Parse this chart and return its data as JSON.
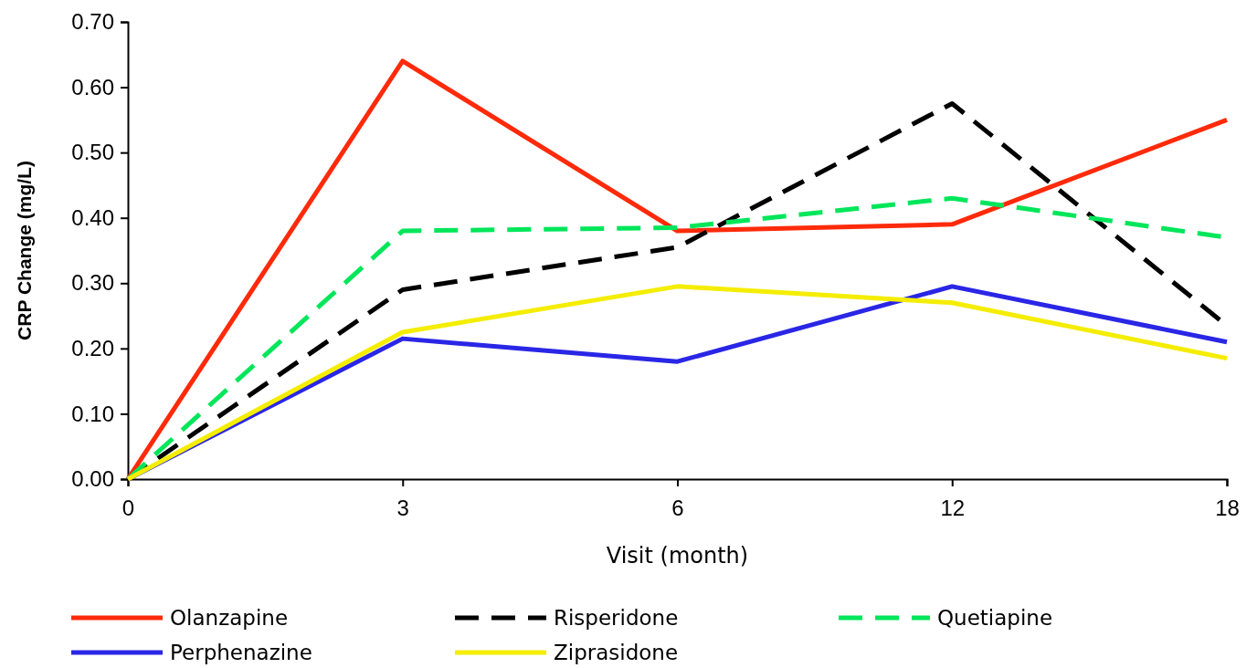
{
  "chart_data": {
    "type": "line",
    "xlabel": "Visit (month)",
    "ylabel": "CRP Change (mg/L)",
    "categories": [
      "0",
      "3",
      "6",
      "12",
      "18"
    ],
    "ylim": [
      0,
      0.7
    ],
    "yticks": [
      {
        "value": 0,
        "label": "0.00"
      },
      {
        "value": 0.1,
        "label": "0.10"
      },
      {
        "value": 0.2,
        "label": "0.20"
      },
      {
        "value": 0.3,
        "label": "0.30"
      },
      {
        "value": 0.4,
        "label": "0.40"
      },
      {
        "value": 0.5,
        "label": "0.50"
      },
      {
        "value": 0.6,
        "label": "0.60"
      },
      {
        "value": 0.7,
        "label": "0.70"
      }
    ],
    "legend": "bottom",
    "marker": "none",
    "series": [
      {
        "name": "Olanzapine",
        "color": "#ff2a0a",
        "line_style": "solid",
        "values": [
          0,
          0.64,
          0.38,
          0.39,
          0.55
        ]
      },
      {
        "name": "Risperidone",
        "color": "#000000",
        "line_style": "dashed",
        "values": [
          0,
          0.29,
          0.355,
          0.575,
          0.235
        ]
      },
      {
        "name": "Quetiapine",
        "color": "#00e65a",
        "line_style": "dashed",
        "values": [
          0,
          0.38,
          0.385,
          0.43,
          0.37
        ]
      },
      {
        "name": "Perphenazine",
        "color": "#2a26e6",
        "line_style": "solid",
        "values": [
          0,
          0.215,
          0.18,
          0.295,
          0.21
        ]
      },
      {
        "name": "Ziprasidone",
        "color": "#f5ed00",
        "line_style": "solid",
        "values": [
          0,
          0.225,
          0.295,
          0.27,
          0.185
        ]
      }
    ]
  }
}
